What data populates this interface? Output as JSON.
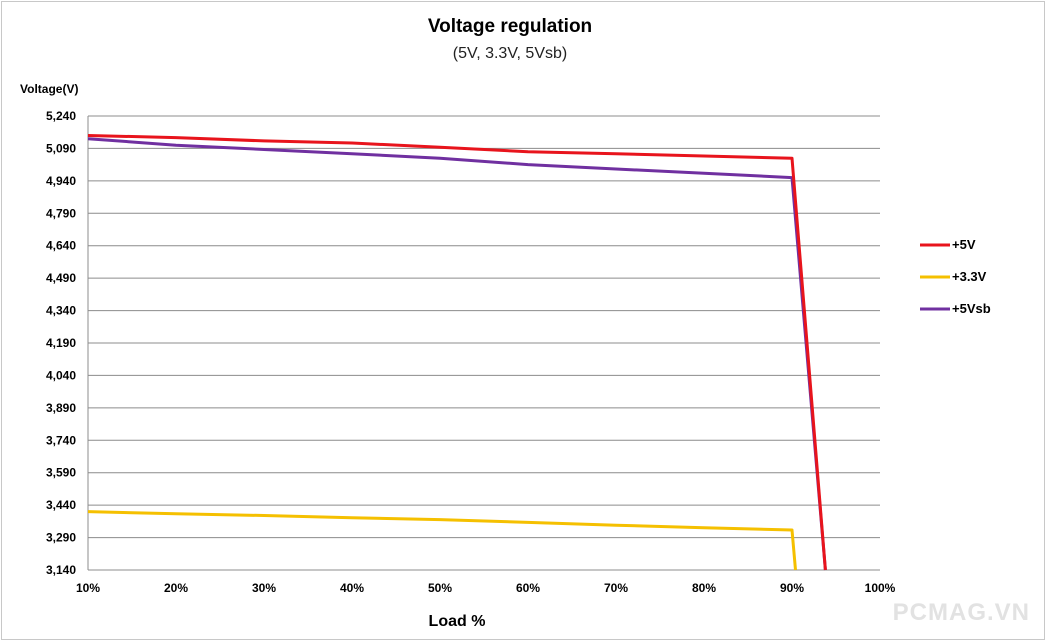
{
  "chart_data": {
    "type": "line",
    "title": "Voltage regulation",
    "subtitle": "(5V, 3.3V, 5Vsb)",
    "ylabel": "Voltage(V)",
    "xlabel": "Load %",
    "ylim": [
      3140,
      5240
    ],
    "yticks": [
      "5,240",
      "5,090",
      "4,940",
      "4,790",
      "4,640",
      "4,490",
      "4,340",
      "4,190",
      "4,040",
      "3,890",
      "3,740",
      "3,590",
      "3,440",
      "3,290",
      "3,140"
    ],
    "ytick_values": [
      5240,
      5090,
      4940,
      4790,
      4640,
      4490,
      4340,
      4190,
      4040,
      3890,
      3740,
      3590,
      3440,
      3290,
      3140
    ],
    "xlim": [
      10,
      100
    ],
    "xticks": [
      "10%",
      "20%",
      "30%",
      "40%",
      "50%",
      "60%",
      "70%",
      "80%",
      "90%",
      "100%"
    ],
    "xtick_values": [
      10,
      20,
      30,
      40,
      50,
      60,
      70,
      80,
      90,
      100
    ],
    "grid": true,
    "legend_position": "right",
    "series": [
      {
        "name": "+5V",
        "color": "#e8141c",
        "x": [
          10,
          20,
          30,
          40,
          50,
          60,
          70,
          80,
          90,
          93.8
        ],
        "y": [
          5150,
          5140,
          5125,
          5115,
          5095,
          5075,
          5065,
          5055,
          5045,
          3140
        ]
      },
      {
        "name": "+3.3V",
        "color": "#f5c000",
        "x": [
          10,
          20,
          30,
          40,
          50,
          60,
          70,
          80,
          90,
          90.4
        ],
        "y": [
          3410,
          3400,
          3392,
          3382,
          3373,
          3360,
          3347,
          3335,
          3325,
          3140
        ]
      },
      {
        "name": "+5Vsb",
        "color": "#7030a0",
        "x": [
          10,
          20,
          30,
          40,
          50,
          60,
          70,
          80,
          90,
          93.8
        ],
        "y": [
          5135,
          5105,
          5085,
          5065,
          5045,
          5015,
          4995,
          4975,
          4955,
          3140
        ]
      }
    ]
  },
  "watermark": "PCMAG.VN"
}
